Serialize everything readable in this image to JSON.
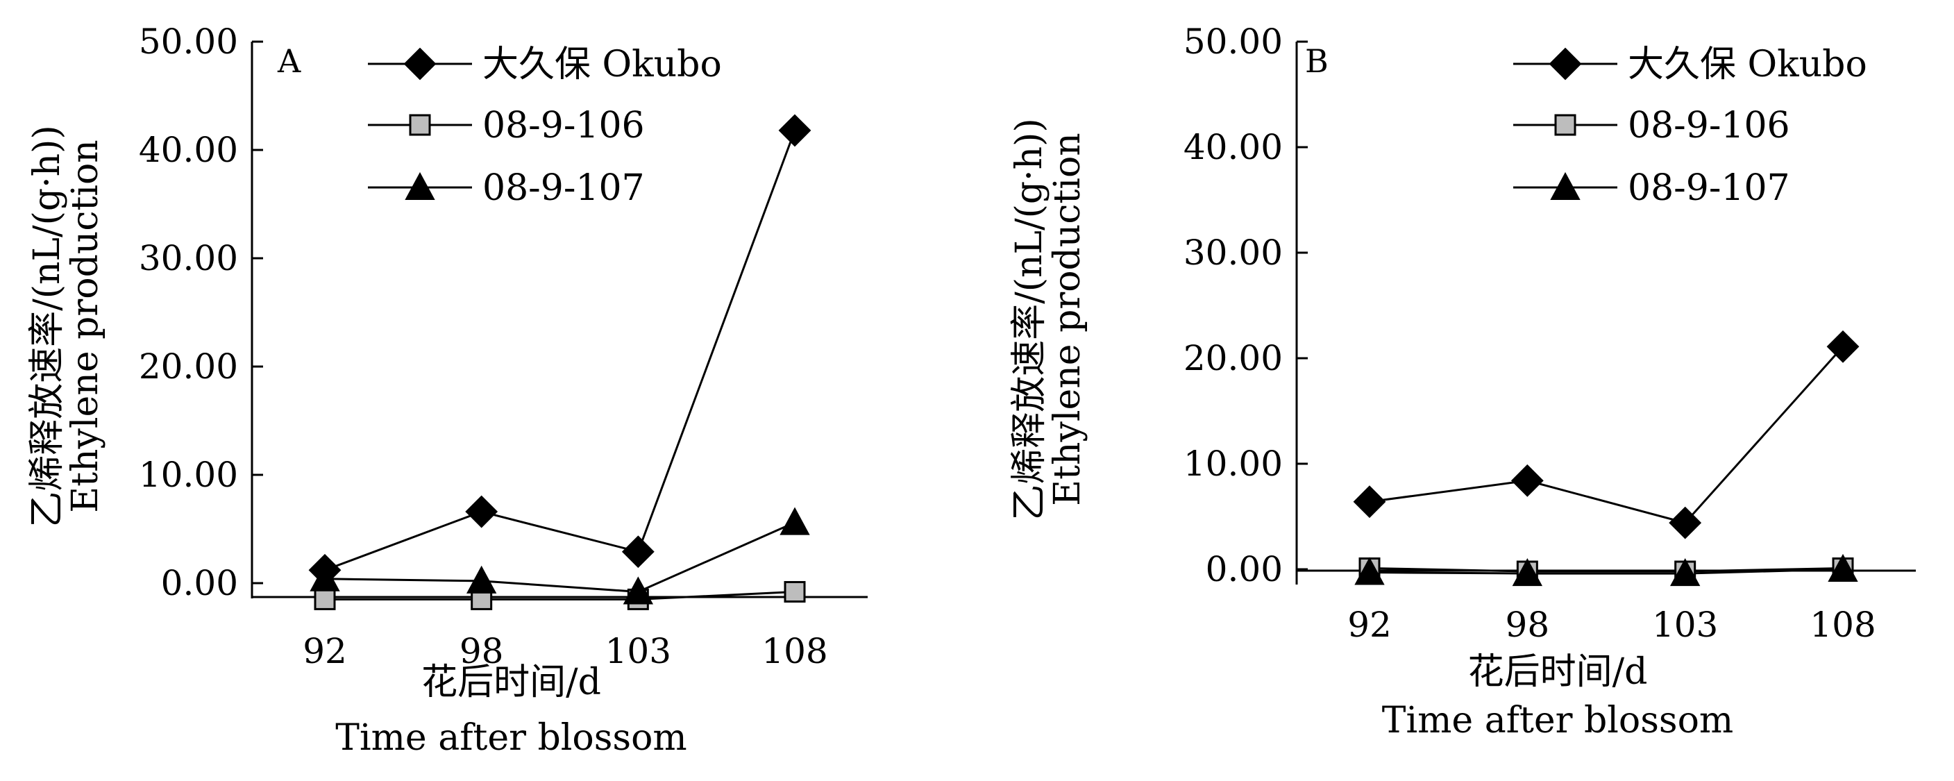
{
  "chart_data": [
    {
      "type": "line",
      "panel_label": "A",
      "categories": [
        "92",
        "98",
        "103",
        "108"
      ],
      "y_ticks": [
        "0.00",
        "10.00",
        "20.00",
        "30.00",
        "40.00",
        "50.00"
      ],
      "ylim": [
        0,
        50
      ],
      "grid": false,
      "legend_position": "top-right",
      "xlabel_cn": "花后时间/d",
      "xlabel_en": "Time after blossom",
      "ylabel_cn": "乙烯释放速率/(nL/(g·h))",
      "ylabel_en": "Ethylene production",
      "series": [
        {
          "name": "大久保 Okubo",
          "marker": "diamond",
          "fill": "#000000",
          "values": [
            1.2,
            6.6,
            2.9,
            41.8
          ]
        },
        {
          "name": "08-9-106",
          "marker": "square",
          "fill": "#bdbdbd",
          "values": [
            -1.5,
            -1.5,
            -1.5,
            -0.8
          ]
        },
        {
          "name": "08-9-107",
          "marker": "triangle",
          "fill": "#000000",
          "values": [
            0.4,
            0.2,
            -0.8,
            5.6
          ]
        }
      ]
    },
    {
      "type": "line",
      "panel_label": "B",
      "categories": [
        "92",
        "98",
        "103",
        "108"
      ],
      "y_ticks": [
        "0.00",
        "10.00",
        "20.00",
        "30.00",
        "40.00",
        "50.00"
      ],
      "ylim": [
        0,
        50
      ],
      "grid": false,
      "legend_position": "top-right",
      "xlabel_cn": "花后时间/d",
      "xlabel_en": "Time after blossom",
      "ylabel_cn": "乙烯释放速率/(nL/(g·h))",
      "ylabel_en": "Ethylene production",
      "series": [
        {
          "name": "大久保 Okubo",
          "marker": "diamond",
          "fill": "#000000",
          "values": [
            6.4,
            8.4,
            4.4,
            21.1
          ]
        },
        {
          "name": "08-9-106",
          "marker": "square",
          "fill": "#bdbdbd",
          "values": [
            0.1,
            -0.2,
            -0.2,
            0.1
          ]
        },
        {
          "name": "08-9-107",
          "marker": "triangle",
          "fill": "#000000",
          "values": [
            -0.3,
            -0.4,
            -0.4,
            0.0
          ]
        }
      ]
    }
  ]
}
